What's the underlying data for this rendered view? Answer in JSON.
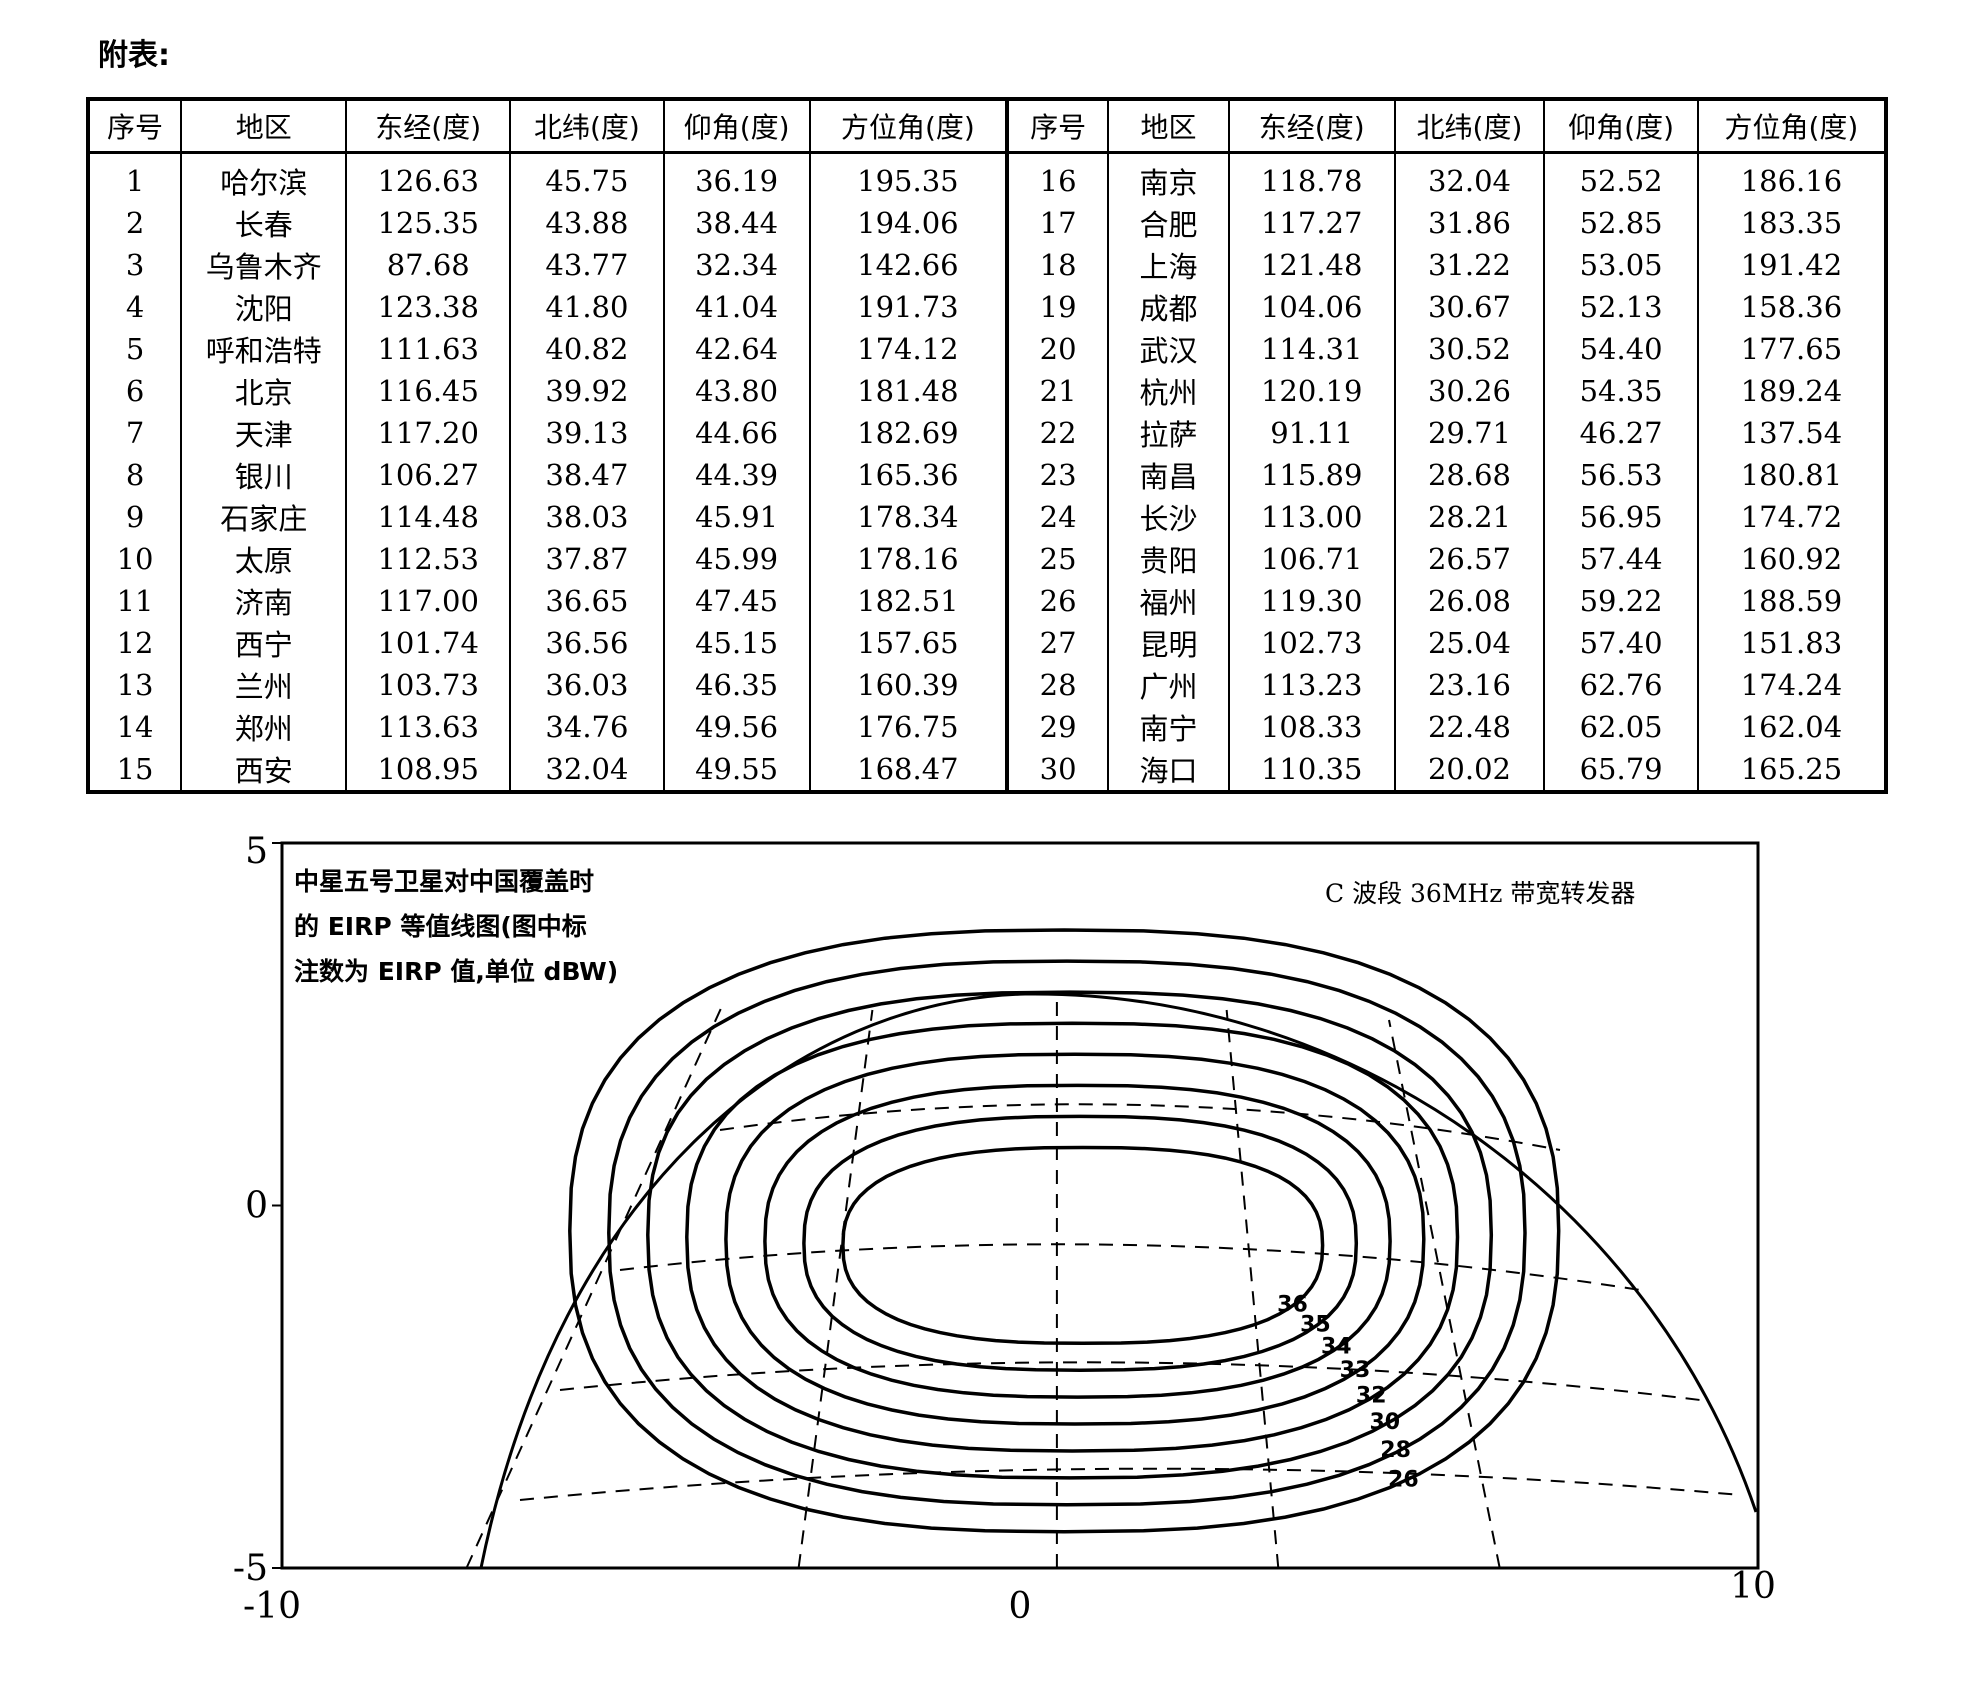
{
  "title": "附表:",
  "table": {
    "headers": [
      "序号",
      "地区",
      "东经(度)",
      "北纬(度)",
      "仰角(度)",
      "方位角(度)",
      "序号",
      "地区",
      "东经(度)",
      "北纬(度)",
      "仰角(度)",
      "方位角(度)"
    ],
    "rows": [
      [
        "1",
        "哈尔滨",
        "126.63",
        "45.75",
        "36.19",
        "195.35",
        "16",
        "南京",
        "118.78",
        "32.04",
        "52.52",
        "186.16"
      ],
      [
        "2",
        "长春",
        "125.35",
        "43.88",
        "38.44",
        "194.06",
        "17",
        "合肥",
        "117.27",
        "31.86",
        "52.85",
        "183.35"
      ],
      [
        "3",
        "乌鲁木齐",
        "87.68",
        "43.77",
        "32.34",
        "142.66",
        "18",
        "上海",
        "121.48",
        "31.22",
        "53.05",
        "191.42"
      ],
      [
        "4",
        "沈阳",
        "123.38",
        "41.80",
        "41.04",
        "191.73",
        "19",
        "成都",
        "104.06",
        "30.67",
        "52.13",
        "158.36"
      ],
      [
        "5",
        "呼和浩特",
        "111.63",
        "40.82",
        "42.64",
        "174.12",
        "20",
        "武汉",
        "114.31",
        "30.52",
        "54.40",
        "177.65"
      ],
      [
        "6",
        "北京",
        "116.45",
        "39.92",
        "43.80",
        "181.48",
        "21",
        "杭州",
        "120.19",
        "30.26",
        "54.35",
        "189.24"
      ],
      [
        "7",
        "天津",
        "117.20",
        "39.13",
        "44.66",
        "182.69",
        "22",
        "拉萨",
        "91.11",
        "29.71",
        "46.27",
        "137.54"
      ],
      [
        "8",
        "银川",
        "106.27",
        "38.47",
        "44.39",
        "165.36",
        "23",
        "南昌",
        "115.89",
        "28.68",
        "56.53",
        "180.81"
      ],
      [
        "9",
        "石家庄",
        "114.48",
        "38.03",
        "45.91",
        "178.34",
        "24",
        "长沙",
        "113.00",
        "28.21",
        "56.95",
        "174.72"
      ],
      [
        "10",
        "太原",
        "112.53",
        "37.87",
        "45.99",
        "178.16",
        "25",
        "贵阳",
        "106.71",
        "26.57",
        "57.44",
        "160.92"
      ],
      [
        "11",
        "济南",
        "117.00",
        "36.65",
        "47.45",
        "182.51",
        "26",
        "福州",
        "119.30",
        "26.08",
        "59.22",
        "188.59"
      ],
      [
        "12",
        "西宁",
        "101.74",
        "36.56",
        "45.15",
        "157.65",
        "27",
        "昆明",
        "102.73",
        "25.04",
        "57.40",
        "151.83"
      ],
      [
        "13",
        "兰州",
        "103.73",
        "36.03",
        "46.35",
        "160.39",
        "28",
        "广州",
        "113.23",
        "23.16",
        "62.76",
        "174.24"
      ],
      [
        "14",
        "郑州",
        "113.63",
        "34.76",
        "49.56",
        "176.75",
        "29",
        "南宁",
        "108.33",
        "22.48",
        "62.05",
        "162.04"
      ],
      [
        "15",
        "西安",
        "108.95",
        "32.04",
        "49.55",
        "168.47",
        "30",
        "海口",
        "110.35",
        "20.02",
        "65.79",
        "165.25"
      ]
    ]
  },
  "chart_data": {
    "type": "contour",
    "title_lines": [
      "中星五号卫星对中国覆盖时",
      "的 EIRP 等值线图(图中标",
      "注数为 EIRP 值,单位 dBW)"
    ],
    "subtitle": "C 波段 36MHz 带宽转发器",
    "xlim": [
      -10,
      10
    ],
    "ylim": [
      -5,
      5
    ],
    "x_ticks": [
      "-10",
      "0",
      "10"
    ],
    "y_ticks": [
      "5",
      "0",
      "-5"
    ],
    "levels": [
      36,
      35,
      34,
      33,
      32,
      30,
      28,
      26
    ],
    "level_labels": [
      "36",
      "35",
      "34",
      "33",
      "32",
      "30",
      "28",
      "26"
    ],
    "unit": "dBW"
  }
}
